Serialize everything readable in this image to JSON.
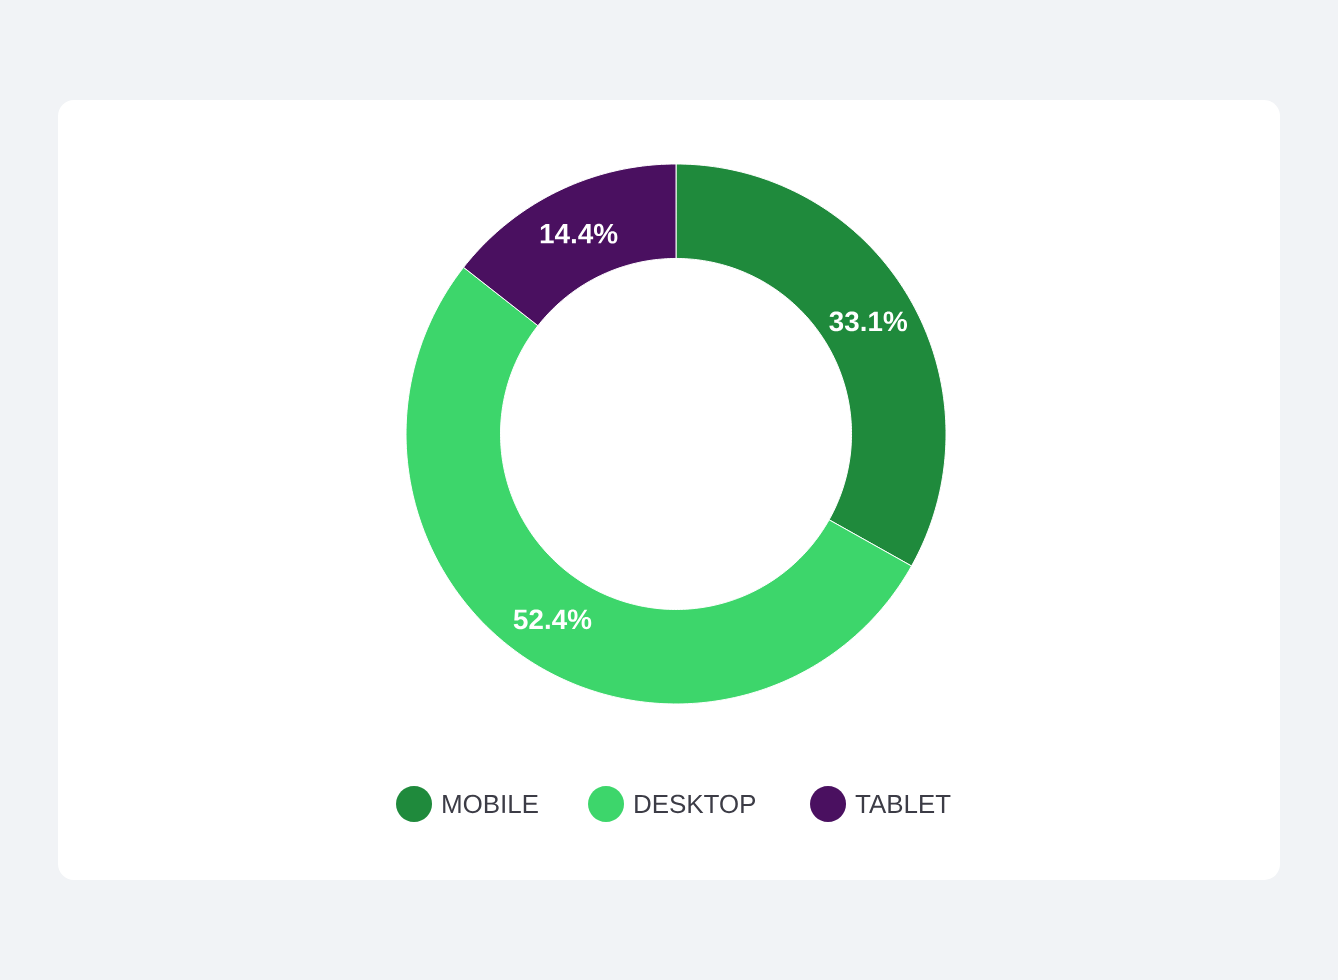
{
  "chart_data": {
    "type": "donut",
    "categories": [
      "MOBILE",
      "DESKTOP",
      "TABLET"
    ],
    "values": [
      33.1,
      52.4,
      14.4
    ],
    "colors": [
      "#1f8a3c",
      "#3dd66b",
      "#4a1060"
    ],
    "value_labels": [
      "33.1%",
      "52.4%",
      "14.4%"
    ],
    "legend": "bottom"
  }
}
